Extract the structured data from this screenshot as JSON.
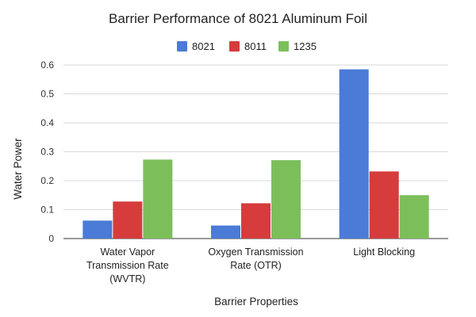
{
  "chart_data": {
    "type": "bar",
    "title": "Barrier Performance of 8021 Aluminum Foil",
    "xlabel": "Barrier Properties",
    "ylabel": "Water Power",
    "ylim": [
      0,
      0.6
    ],
    "yticks": [
      "0",
      "0.1",
      "0.2",
      "0.3",
      "0.4",
      "0.5",
      "0.6"
    ],
    "grid": true,
    "legend_position": "top",
    "categories": [
      [
        "Water Vapor",
        "Transmission Rate",
        "(WVTR)"
      ],
      [
        "Oxygen Transmission",
        "Rate (OTR)"
      ],
      [
        "Light Blocking"
      ]
    ],
    "series": [
      {
        "name": "8021",
        "color": "#4a7bd6",
        "values": [
          0.062,
          0.045,
          0.585
        ]
      },
      {
        "name": "8011",
        "color": "#d63c3c",
        "values": [
          0.128,
          0.122,
          0.232
        ]
      },
      {
        "name": "1235",
        "color": "#7cbf5a",
        "values": [
          0.273,
          0.271,
          0.15
        ]
      }
    ]
  }
}
